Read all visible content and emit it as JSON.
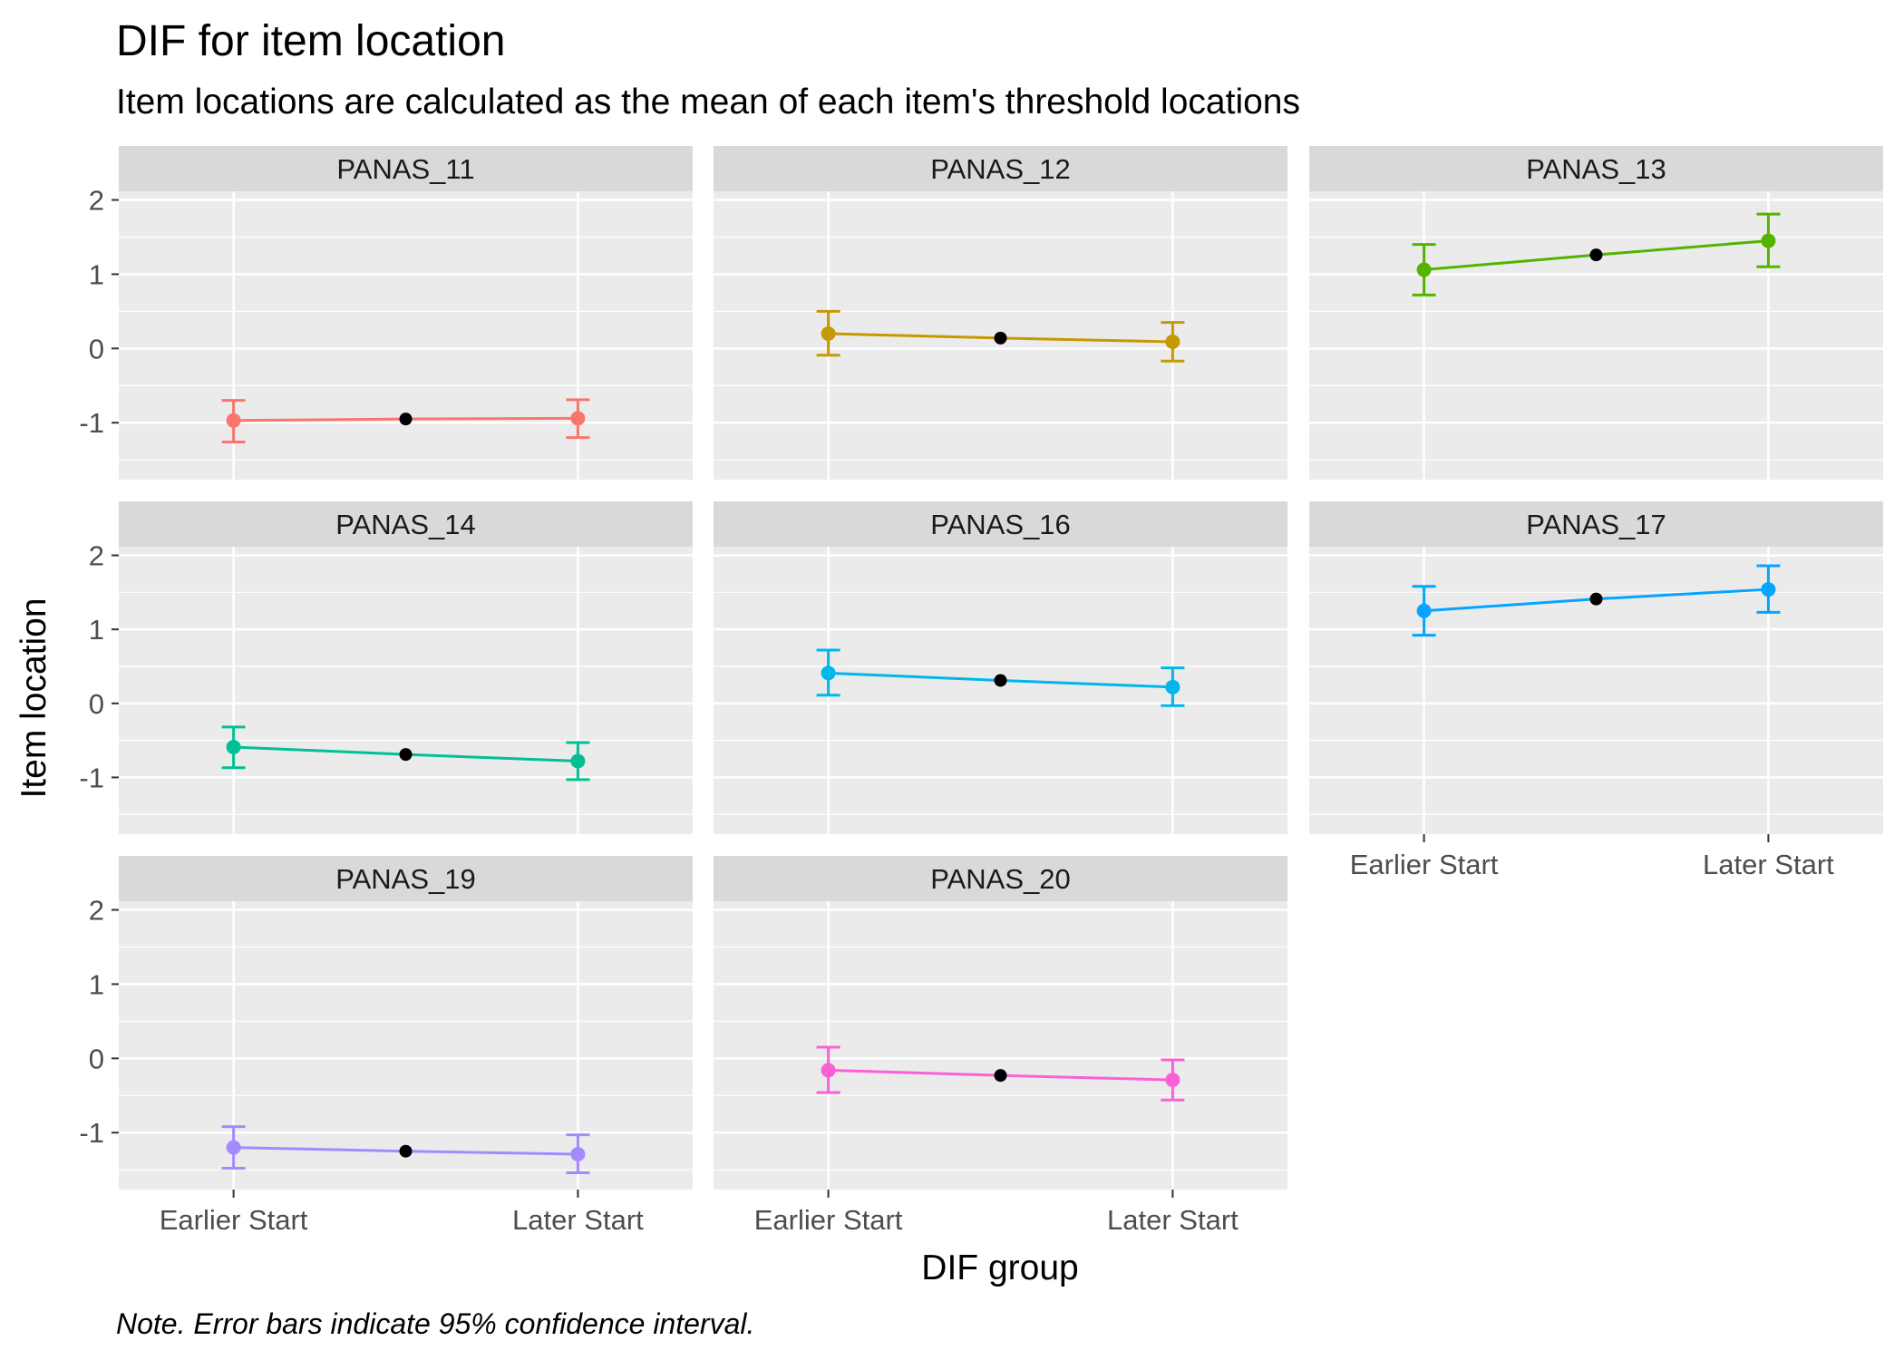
{
  "chart_data": {
    "type": "line",
    "title": "DIF for item location",
    "subtitle": "Item locations are calculated as the mean of each item's threshold locations",
    "xlabel": "DIF group",
    "ylabel": "Item location",
    "caption": "Note. Error bars indicate 95% confidence interval.",
    "categories": [
      "Earlier Start",
      "Later Start"
    ],
    "ylim": [
      -1.65,
      2.0
    ],
    "yticks": [
      -1,
      0,
      1,
      2
    ],
    "grid": true,
    "legend": "none",
    "panels": [
      {
        "name": "PANAS_11",
        "color": "#F8766D",
        "values": [
          -0.97,
          -0.94
        ],
        "ci_low": [
          -1.26,
          -1.2
        ],
        "ci_high": [
          -0.7,
          -0.69
        ],
        "mean": -0.95
      },
      {
        "name": "PANAS_12",
        "color": "#C49A00",
        "values": [
          0.2,
          0.09
        ],
        "ci_low": [
          -0.09,
          -0.17
        ],
        "ci_high": [
          0.5,
          0.35
        ],
        "mean": 0.14
      },
      {
        "name": "PANAS_13",
        "color": "#53B400",
        "values": [
          1.06,
          1.45
        ],
        "ci_low": [
          0.72,
          1.1
        ],
        "ci_high": [
          1.4,
          1.81
        ],
        "mean": 1.26
      },
      {
        "name": "PANAS_14",
        "color": "#00C094",
        "values": [
          -0.59,
          -0.78
        ],
        "ci_low": [
          -0.87,
          -1.03
        ],
        "ci_high": [
          -0.32,
          -0.53
        ],
        "mean": -0.69
      },
      {
        "name": "PANAS_16",
        "color": "#00B6EB",
        "values": [
          0.41,
          0.22
        ],
        "ci_low": [
          0.11,
          -0.03
        ],
        "ci_high": [
          0.72,
          0.48
        ],
        "mean": 0.31
      },
      {
        "name": "PANAS_17",
        "color": "#06A4FF",
        "values": [
          1.25,
          1.54
        ],
        "ci_low": [
          0.92,
          1.23
        ],
        "ci_high": [
          1.58,
          1.86
        ],
        "mean": 1.41
      },
      {
        "name": "PANAS_19",
        "color": "#A58AFF",
        "values": [
          -1.2,
          -1.29
        ],
        "ci_low": [
          -1.48,
          -1.54
        ],
        "ci_high": [
          -0.92,
          -1.03
        ],
        "mean": -1.25
      },
      {
        "name": "PANAS_20",
        "color": "#FB61D7",
        "values": [
          -0.16,
          -0.29
        ],
        "ci_low": [
          -0.46,
          -0.56
        ],
        "ci_high": [
          0.15,
          -0.02
        ],
        "mean": -0.23
      }
    ]
  }
}
